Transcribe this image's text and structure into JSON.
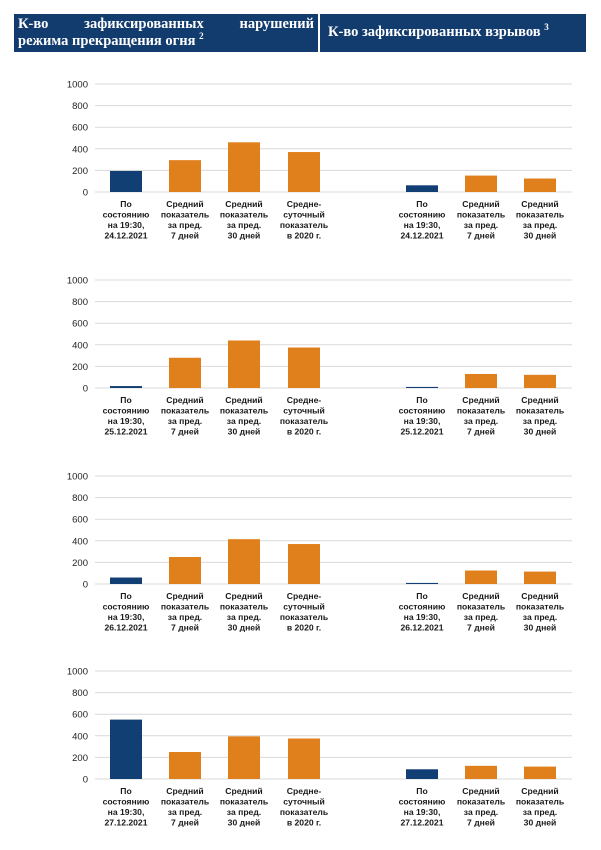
{
  "header": {
    "left_line1": "К-во зафиксированных нарушений",
    "left_line2": "режима прекращения огня",
    "left_sup": "2",
    "right_title": "К-во зафиксированных взрывов",
    "right_sup": "3"
  },
  "colors": {
    "current": "#123f73",
    "average": "#e0801c",
    "grid": "#d9d9d9"
  },
  "chart_data": [
    {
      "type": "bar",
      "ylim": [
        0,
        1000
      ],
      "yticks": [
        "1000",
        "800",
        "600",
        "400",
        "200",
        "0"
      ],
      "grid": true,
      "groups": [
        {
          "categories": [
            [
              "По",
              "состоянию",
              "на 19:30,",
              "24.12.2021"
            ],
            [
              "Средний",
              "показатель",
              "за пред.",
              "7 дней"
            ],
            [
              "Средний",
              "показатель",
              "за пред.",
              "30 дней"
            ],
            [
              "Средне-",
              "суточный",
              "показатель",
              "в 2020 г."
            ]
          ],
          "values": [
            195,
            295,
            460,
            370
          ]
        },
        {
          "categories": [
            [
              "По",
              "состоянию",
              "на 19:30,",
              "24.12.2021"
            ],
            [
              "Средний",
              "показатель",
              "за пред.",
              "7 дней"
            ],
            [
              "Средний",
              "показатель",
              "за пред.",
              "30 дней"
            ]
          ],
          "values": [
            62,
            152,
            125
          ]
        }
      ]
    },
    {
      "type": "bar",
      "ylim": [
        0,
        1000
      ],
      "yticks": [
        "1000",
        "800",
        "600",
        "400",
        "200",
        "0"
      ],
      "grid": true,
      "groups": [
        {
          "categories": [
            [
              "По",
              "состоянию",
              "на 19:30,",
              "25.12.2021"
            ],
            [
              "Средний",
              "показатель",
              "за пред.",
              "7 дней"
            ],
            [
              "Средний",
              "показатель",
              "за пред.",
              "30 дней"
            ],
            [
              "Средне-",
              "суточный",
              "показатель",
              "в 2020 г."
            ]
          ],
          "values": [
            18,
            280,
            440,
            375
          ]
        },
        {
          "categories": [
            [
              "По",
              "состоянию",
              "на 19:30,",
              "25.12.2021"
            ],
            [
              "Средний",
              "показатель",
              "за пред.",
              "7 дней"
            ],
            [
              "Средний",
              "показатель",
              "за пред.",
              "30 дней"
            ]
          ],
          "values": [
            10,
            130,
            122
          ]
        }
      ]
    },
    {
      "type": "bar",
      "ylim": [
        0,
        1000
      ],
      "yticks": [
        "1000",
        "800",
        "600",
        "400",
        "200",
        "0"
      ],
      "grid": true,
      "groups": [
        {
          "categories": [
            [
              "По",
              "состоянию",
              "на 19:30,",
              "26.12.2021"
            ],
            [
              "Средний",
              "показатель",
              "за пред.",
              "7 дней"
            ],
            [
              "Средний",
              "показатель",
              "за пред.",
              "30 дней"
            ],
            [
              "Средне-",
              "суточный",
              "показатель",
              "в 2020 г."
            ]
          ],
          "values": [
            60,
            250,
            415,
            370
          ]
        },
        {
          "categories": [
            [
              "По",
              "состоянию",
              "на 19:30,",
              "26.12.2021"
            ],
            [
              "Средний",
              "показатель",
              "за пред.",
              "7 дней"
            ],
            [
              "Средний",
              "показатель",
              "за пред.",
              "30 дней"
            ]
          ],
          "values": [
            10,
            125,
            115
          ]
        }
      ]
    },
    {
      "type": "bar",
      "ylim": [
        0,
        1000
      ],
      "yticks": [
        "1000",
        "800",
        "600",
        "400",
        "200",
        "0"
      ],
      "grid": true,
      "groups": [
        {
          "categories": [
            [
              "По",
              "состоянию",
              "на 19:30,",
              "27.12.2021"
            ],
            [
              "Средний",
              "показатель",
              "за пред.",
              "7 дней"
            ],
            [
              "Средний",
              "показатель",
              "за пред.",
              "30 дней"
            ],
            [
              "Средне-",
              "суточный",
              "показатель",
              "в 2020 г."
            ]
          ],
          "values": [
            550,
            250,
            395,
            375
          ]
        },
        {
          "categories": [
            [
              "По",
              "состоянию",
              "на 19:30,",
              "27.12.2021"
            ],
            [
              "Средний",
              "показатель",
              "за пред.",
              "7 дней"
            ],
            [
              "Средний",
              "показатель",
              "за пред.",
              "30 дней"
            ]
          ],
          "values": [
            90,
            122,
            115
          ]
        }
      ]
    }
  ]
}
